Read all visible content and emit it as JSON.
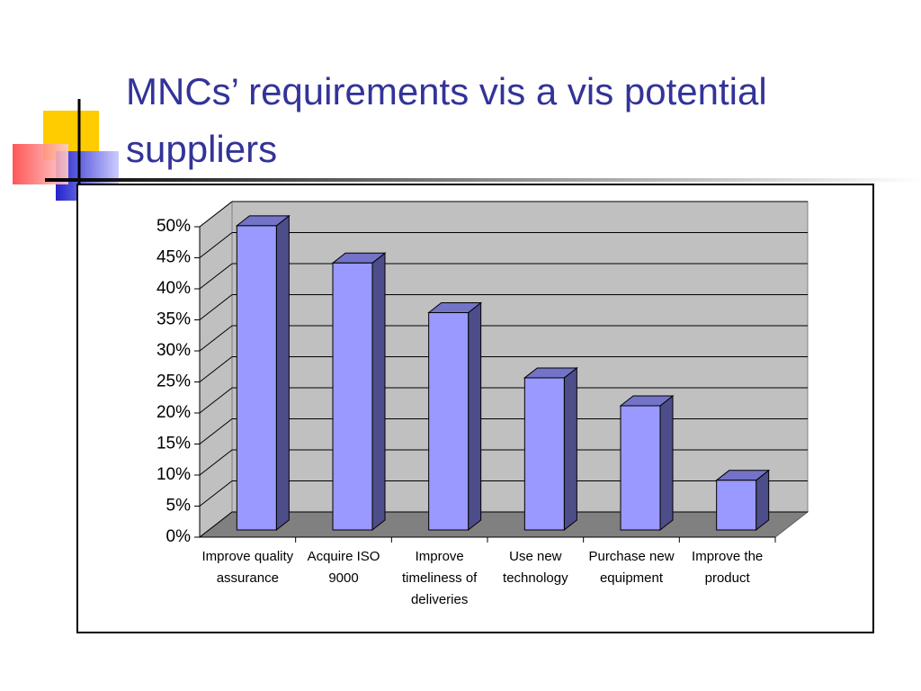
{
  "chart_data": {
    "type": "bar3d",
    "title": "MNCs’ requirements vis a vis potential suppliers",
    "categories": [
      "Improve quality assurance",
      "Acquire ISO 9000",
      "Improve timeliness of deliveries",
      "Use new technology",
      "Purchase new equipment",
      "Improve the product"
    ],
    "values": [
      49,
      43,
      35,
      24.5,
      20,
      8
    ],
    "color": "#9999ff",
    "ylim": [
      0,
      50
    ],
    "yticks": [
      {
        "value": 0,
        "label": "0%"
      },
      {
        "value": 5,
        "label": "5%"
      },
      {
        "value": 10,
        "label": "10%"
      },
      {
        "value": 15,
        "label": "15%"
      },
      {
        "value": 20,
        "label": "20%"
      },
      {
        "value": 25,
        "label": "25%"
      },
      {
        "value": 30,
        "label": "30%"
      },
      {
        "value": 35,
        "label": "35%"
      },
      {
        "value": 40,
        "label": "40%"
      },
      {
        "value": 45,
        "label": "45%"
      },
      {
        "value": 50,
        "label": "50%"
      }
    ],
    "grid": true
  }
}
